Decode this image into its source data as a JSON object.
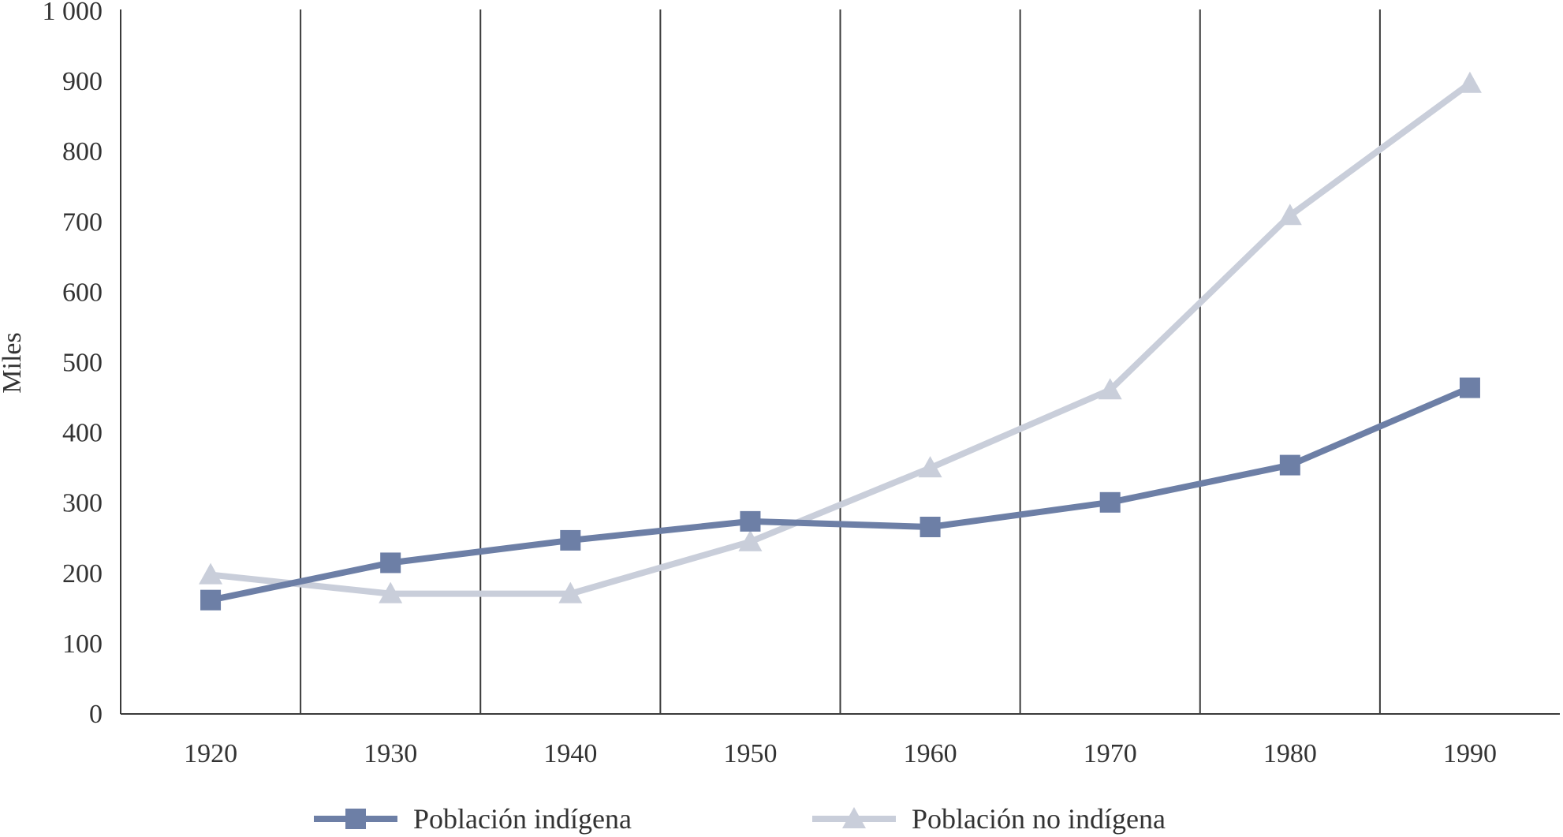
{
  "chart_data": {
    "type": "line",
    "title": "",
    "xlabel": "",
    "ylabel": "Miles",
    "categories": [
      "1920",
      "1930",
      "1940",
      "1950",
      "1960",
      "1970",
      "1980",
      "1990"
    ],
    "yticks": [
      "0",
      "100",
      "200",
      "300",
      "400",
      "500",
      "600",
      "700",
      "800",
      "900",
      "1 000"
    ],
    "ylim": [
      0,
      1000
    ],
    "grid": "vertical lines between categories",
    "legend_position": "bottom",
    "series": [
      {
        "name": "Población indígena",
        "marker": "square",
        "color": "#6d7fa6",
        "values": [
          162,
          215,
          247,
          274,
          266,
          301,
          354,
          464
        ]
      },
      {
        "name": "Población no indígena",
        "marker": "triangle",
        "color": "#c9ceda",
        "values": [
          198,
          171,
          171,
          245,
          350,
          461,
          709,
          897
        ]
      }
    ]
  }
}
